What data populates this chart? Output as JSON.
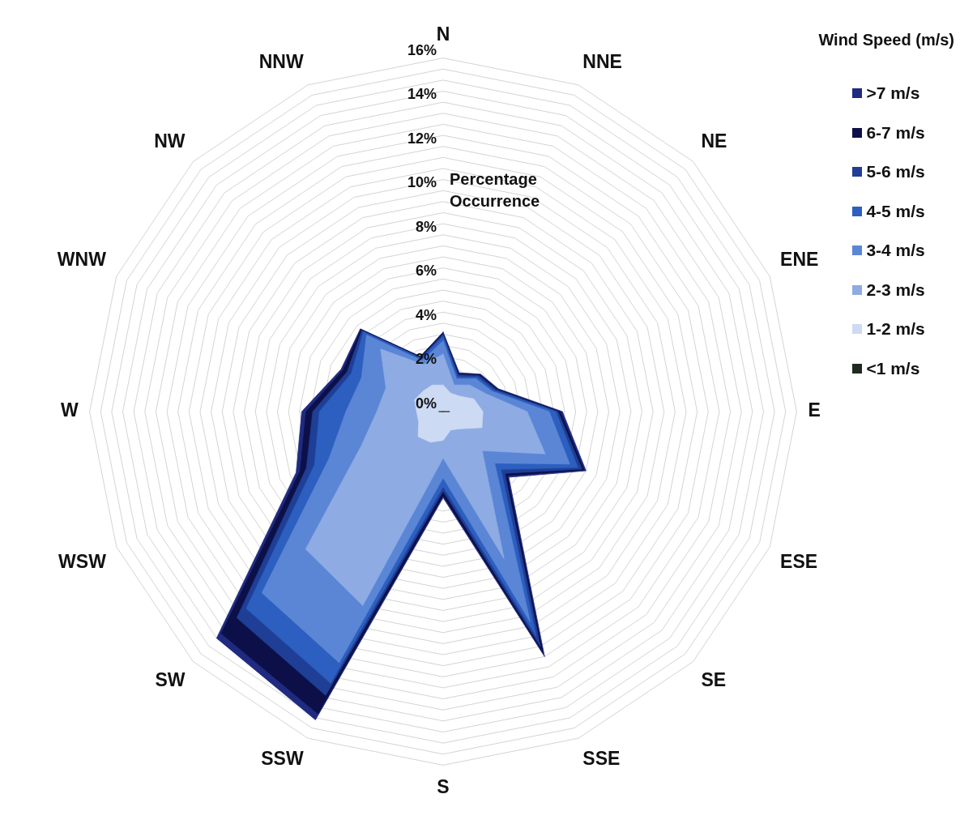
{
  "chart_data": {
    "type": "radar",
    "ylabel": "Percentage Occurrence",
    "legend_title": "Wind Speed (m/s)",
    "legend": "top right",
    "grid": true,
    "marker": "none",
    "categories": [
      "N",
      "NNE",
      "NE",
      "ENE",
      "E",
      "ESE",
      "SE",
      "SSE",
      "S",
      "SSW",
      "SW",
      "WSW",
      "W",
      "WNW",
      "NW",
      "NNW"
    ],
    "ylim": [
      0,
      16
    ],
    "yticks": [
      {
        "value": 0,
        "label": "0%"
      },
      {
        "value": 2,
        "label": "2%"
      },
      {
        "value": 4,
        "label": "4%"
      },
      {
        "value": 6,
        "label": "6%"
      },
      {
        "value": 8,
        "label": "8%"
      },
      {
        "value": 10,
        "label": "10%"
      },
      {
        "value": 12,
        "label": "12%"
      },
      {
        "value": 14,
        "label": "14%"
      },
      {
        "value": 16,
        "label": "16%"
      }
    ],
    "series": [
      {
        "name": ">7 m/s",
        "color": "#1f2a80",
        "values": [
          3.6,
          1.9,
          2.4,
          2.7,
          5.4,
          7.0,
          4.2,
          12.0,
          3.9,
          15.1,
          14.5,
          7.2,
          6.4,
          5.0,
          5.3,
          2.7
        ]
      },
      {
        "name": "6-7 m/s",
        "color": "#0d1048",
        "values": [
          3.55,
          1.85,
          2.35,
          2.65,
          5.3,
          6.9,
          4.1,
          11.8,
          3.8,
          14.8,
          14.2,
          7.0,
          6.2,
          4.9,
          5.25,
          2.7
        ]
      },
      {
        "name": "5-6 m/s",
        "color": "#1f3f96",
        "values": [
          3.5,
          1.8,
          2.3,
          2.6,
          5.2,
          6.8,
          3.95,
          11.5,
          3.6,
          13.9,
          13.2,
          6.7,
          5.9,
          4.7,
          5.2,
          2.65
        ]
      },
      {
        "name": "4-5 m/s",
        "color": "#2c5fbf",
        "values": [
          3.4,
          1.7,
          2.2,
          2.5,
          5.1,
          6.6,
          3.7,
          11.0,
          3.4,
          13.3,
          12.6,
          6.3,
          5.6,
          4.5,
          5.1,
          2.6
        ]
      },
      {
        "name": "3-4 m/s",
        "color": "#5b86d6",
        "values": [
          3.2,
          1.6,
          2.1,
          2.4,
          4.8,
          6.2,
          3.3,
          10.3,
          3.0,
          12.3,
          11.6,
          5.6,
          4.4,
          4.0,
          4.9,
          2.5
        ]
      },
      {
        "name": "2-3 m/s",
        "color": "#8eabe3",
        "values": [
          2.6,
          1.3,
          1.7,
          2.1,
          3.8,
          5.0,
          2.5,
          7.2,
          2.1,
          9.5,
          8.8,
          4.0,
          3.0,
          2.8,
          4.0,
          2.3
        ]
      },
      {
        "name": "1-2 m/s",
        "color": "#cddaf3",
        "values": [
          1.2,
          0.9,
          1.0,
          1.5,
          1.8,
          1.9,
          1.1,
          0.9,
          1.3,
          1.5,
          1.6,
          1.2,
          1.2,
          1.4,
          1.3,
          1.3
        ]
      },
      {
        "name": "<1 m/s",
        "color": "#1e2a1e",
        "values": [
          0,
          0,
          0,
          0,
          0.3,
          0,
          0,
          0,
          0,
          0,
          0,
          0,
          0.2,
          0,
          0,
          0
        ]
      }
    ]
  }
}
